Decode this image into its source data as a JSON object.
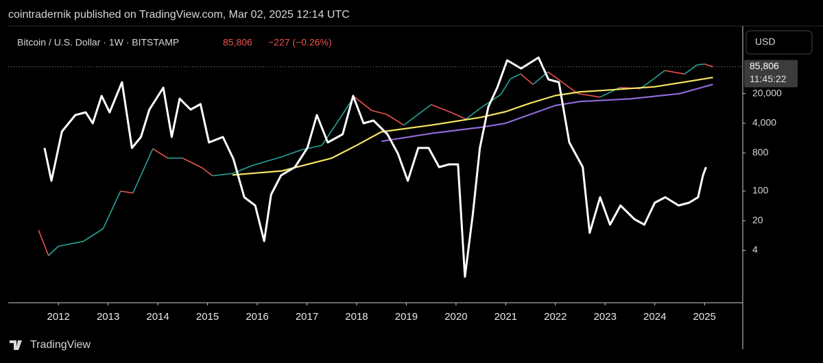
{
  "header": "cointradernik published on TradingView.com, Mar 02, 2025 12:14 UTC",
  "footer": "TradingView",
  "chart_data": {
    "type": "line",
    "currency_button": "USD",
    "last_price_label": "85,806",
    "countdown": "11:45:22",
    "change_label": "−227 (−0.26%)",
    "log_scale": true,
    "xlim": [
      2010.99,
      2025.77
    ],
    "xticks": [
      2012,
      2013,
      2014,
      2015,
      2016,
      2017,
      2018,
      2019,
      2020,
      2021,
      2022,
      2023,
      2024,
      2025
    ],
    "ylim": [
      0.25,
      730000
    ],
    "yticks": [
      4,
      20,
      100,
      800,
      {
        "value": 4000,
        "label": "4,000"
      },
      {
        "value": 20000,
        "label": "20,000"
      }
    ],
    "y2lim": [
      0,
      100
    ],
    "series": [
      {
        "name": "Bitcoin / U.S. Dollar · 1W · BITSTAMP",
        "color": "#26a69a",
        "down_color": "#ef5350",
        "x": [
          2011.6,
          2011.8,
          2012.0,
          2012.5,
          2012.9,
          2013.25,
          2013.5,
          2013.9,
          2014.2,
          2014.5,
          2014.9,
          2015.1,
          2015.5,
          2015.9,
          2016.5,
          2016.9,
          2017.3,
          2017.6,
          2017.95,
          2018.3,
          2018.6,
          2018.95,
          2019.5,
          2019.9,
          2020.2,
          2020.5,
          2020.9,
          2021.1,
          2021.3,
          2021.55,
          2021.85,
          2022.1,
          2022.45,
          2022.9,
          2023.3,
          2023.7,
          2023.95,
          2024.2,
          2024.6,
          2024.85,
          2025.0,
          2025.17
        ],
        "values": [
          12,
          3,
          5,
          6.5,
          13,
          100,
          90,
          1000,
          600,
          600,
          350,
          230,
          260,
          400,
          650,
          950,
          1200,
          4000,
          17000,
          8000,
          6500,
          3600,
          11000,
          7200,
          5000,
          9200,
          19000,
          45000,
          58000,
          33000,
          65000,
          40000,
          20000,
          16500,
          28000,
          26000,
          42000,
          70000,
          58000,
          95000,
          100000,
          85806
        ]
      },
      {
        "color": "#f5e663",
        "x": [
          2015.5,
          2016.5,
          2017.5,
          2018.0,
          2018.5,
          2019.5,
          2020.5,
          2021.0,
          2021.5,
          2022.0,
          2022.5,
          2023.0,
          2024.0,
          2025.17
        ],
        "values": [
          240,
          300,
          600,
          1200,
          2500,
          3600,
          5500,
          7500,
          12000,
          18000,
          22000,
          24000,
          29000,
          48000
        ]
      },
      {
        "color": "#8e6bd8",
        "x": [
          2018.5,
          2019.5,
          2020.5,
          2021.0,
          2021.5,
          2022.0,
          2022.5,
          2023.5,
          2024.5,
          2025.17
        ],
        "values": [
          1500,
          2300,
          3200,
          4000,
          6500,
          10500,
          13000,
          15000,
          20000,
          33000
        ]
      },
      {
        "color": "#ffffff",
        "axis": "y2",
        "x": [
          2011.72,
          2011.86,
          2012.07,
          2012.34,
          2012.55,
          2012.69,
          2012.87,
          2013.03,
          2013.28,
          2013.48,
          2013.66,
          2013.83,
          2014.11,
          2014.28,
          2014.44,
          2014.66,
          2014.86,
          2015.03,
          2015.31,
          2015.52,
          2015.74,
          2015.96,
          2016.14,
          2016.28,
          2016.48,
          2016.76,
          2017.01,
          2017.2,
          2017.42,
          2017.72,
          2017.93,
          2018.14,
          2018.34,
          2018.62,
          2018.83,
          2019.03,
          2019.24,
          2019.45,
          2019.66,
          2019.86,
          2020.04,
          2020.18,
          2020.34,
          2020.48,
          2020.65,
          2020.83,
          2021.03,
          2021.31,
          2021.66,
          2021.86,
          2022.07,
          2022.28,
          2022.55,
          2022.69,
          2022.9,
          2023.1,
          2023.31,
          2023.59,
          2023.79,
          2024.0,
          2024.21,
          2024.48,
          2024.69,
          2024.87,
          2024.97,
          2025.03
        ],
        "values": [
          56,
          44,
          62,
          68,
          69,
          65,
          75,
          69,
          80,
          56,
          60,
          70,
          78,
          60,
          74,
          70,
          72,
          58,
          60,
          52,
          38,
          35,
          22,
          39,
          46,
          49,
          56,
          68,
          58,
          61,
          75,
          65,
          66,
          61,
          54,
          44,
          56,
          56,
          49,
          50,
          50,
          9,
          32,
          56,
          71,
          78,
          88,
          85,
          89,
          81,
          80,
          58,
          49,
          25,
          38,
          28,
          35,
          30,
          28,
          36,
          38,
          35,
          36,
          38,
          46,
          49
        ]
      }
    ]
  }
}
